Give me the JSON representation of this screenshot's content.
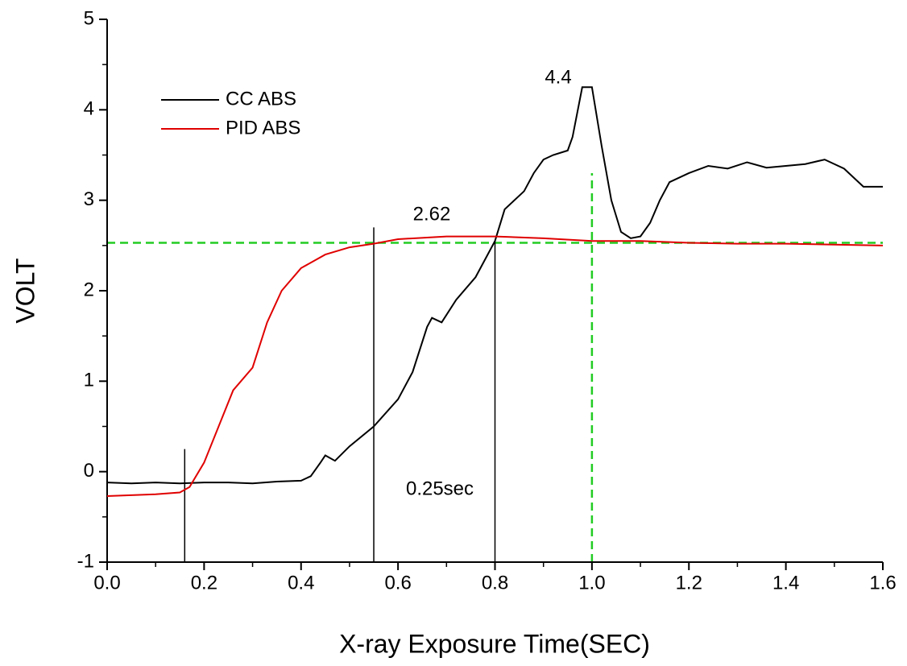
{
  "chart_data": {
    "type": "line",
    "xlabel": "X-ray Exposure Time(SEC)",
    "ylabel": "VOLT",
    "xlim": [
      0,
      1.6
    ],
    "ylim": [
      -1,
      5
    ],
    "xticks": [
      {
        "value": 0,
        "label": "0.0"
      },
      0.2,
      0.4,
      0.6,
      0.8,
      {
        "value": 1,
        "label": "1.0"
      },
      1.2,
      1.4,
      1.6
    ],
    "yticks": [
      -1,
      0,
      1,
      2,
      3,
      4,
      5
    ],
    "x_minor_ticks": [
      0.1,
      0.3,
      0.5,
      0.7,
      0.9,
      1.1,
      1.3,
      1.5
    ],
    "y_minor_ticks": [
      -0.5,
      0.5,
      1.5,
      2.5,
      3.5,
      4.5
    ],
    "series": [
      {
        "name": "CC ABS",
        "color": "#000000",
        "x": [
          0,
          0.05,
          0.1,
          0.15,
          0.2,
          0.25,
          0.3,
          0.35,
          0.4,
          0.42,
          0.44,
          0.45,
          0.47,
          0.5,
          0.55,
          0.6,
          0.63,
          0.66,
          0.67,
          0.69,
          0.72,
          0.76,
          0.8,
          0.82,
          0.86,
          0.88,
          0.9,
          0.92,
          0.95,
          0.96,
          0.98,
          1.0,
          1.02,
          1.04,
          1.06,
          1.08,
          1.1,
          1.12,
          1.14,
          1.16,
          1.2,
          1.24,
          1.28,
          1.32,
          1.36,
          1.4,
          1.44,
          1.48,
          1.52,
          1.56,
          1.6
        ],
        "values": [
          -0.12,
          -0.13,
          -0.12,
          -0.13,
          -0.12,
          -0.12,
          -0.13,
          -0.11,
          -0.1,
          -0.05,
          0.1,
          0.18,
          0.12,
          0.28,
          0.5,
          0.8,
          1.1,
          1.6,
          1.7,
          1.65,
          1.9,
          2.15,
          2.55,
          2.9,
          3.1,
          3.3,
          3.45,
          3.5,
          3.55,
          3.7,
          4.25,
          4.25,
          3.6,
          3.0,
          2.65,
          2.58,
          2.6,
          2.75,
          3.0,
          3.2,
          3.3,
          3.38,
          3.35,
          3.42,
          3.36,
          3.38,
          3.4,
          3.45,
          3.35,
          3.15,
          3.15
        ]
      },
      {
        "name": "PID ABS",
        "color": "#e00000",
        "x": [
          0,
          0.05,
          0.1,
          0.15,
          0.17,
          0.2,
          0.23,
          0.26,
          0.3,
          0.33,
          0.36,
          0.4,
          0.45,
          0.5,
          0.55,
          0.6,
          0.7,
          0.8,
          0.9,
          1.0,
          1.1,
          1.2,
          1.3,
          1.4,
          1.5,
          1.6
        ],
        "values": [
          -0.27,
          -0.26,
          -0.25,
          -0.23,
          -0.17,
          0.1,
          0.5,
          0.9,
          1.15,
          1.65,
          2.0,
          2.25,
          2.4,
          2.48,
          2.52,
          2.57,
          2.6,
          2.6,
          2.58,
          2.55,
          2.55,
          2.53,
          2.52,
          2.52,
          2.51,
          2.5
        ]
      }
    ],
    "reference_lines": [
      {
        "x": [
          0,
          1.6
        ],
        "y": [
          2.53,
          2.53
        ],
        "color": "#22cc22",
        "dashed": true
      },
      {
        "x": [
          1.0,
          1.0
        ],
        "y": [
          -1,
          3.3
        ],
        "color": "#22cc22",
        "dashed": true
      },
      {
        "x": [
          0.16,
          0.16
        ],
        "y": [
          -1,
          0.25
        ],
        "color": "#000000",
        "dashed": false
      },
      {
        "x": [
          0.55,
          0.55
        ],
        "y": [
          -1,
          2.7
        ],
        "color": "#000000",
        "dashed": false
      },
      {
        "x": [
          0.8,
          0.8
        ],
        "y": [
          -1,
          2.55
        ],
        "color": "#000000",
        "dashed": false
      }
    ],
    "annotations": [
      "4.4",
      "2.62",
      "0.25sec"
    ]
  }
}
